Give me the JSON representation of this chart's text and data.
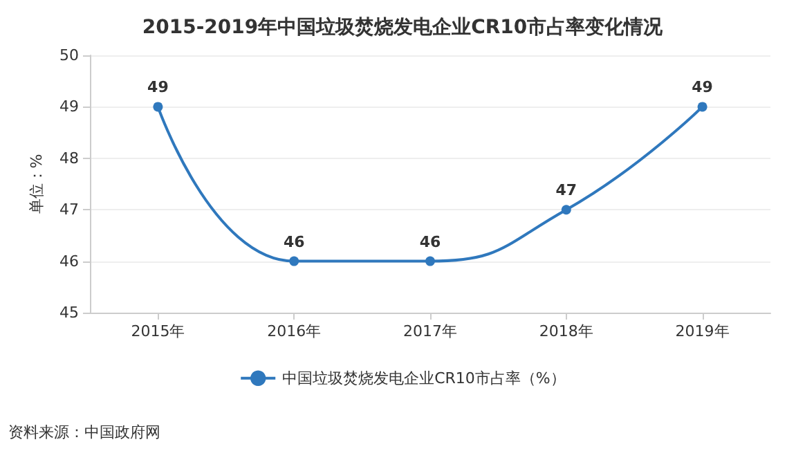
{
  "chart_data": {
    "type": "line",
    "title": "2015-2019年中国垃圾焚烧发电企业CR10市占率变化情况",
    "ylabel": "单位：%",
    "categories": [
      "2015年",
      "2016年",
      "2017年",
      "2018年",
      "2019年"
    ],
    "series": [
      {
        "name": "中国垃圾焚烧发电企业CR10市占率（%）",
        "color": "#2f78bd",
        "values": [
          49,
          46,
          46,
          47,
          49
        ]
      }
    ],
    "ylim": [
      45,
      50
    ],
    "yticks": [
      45,
      46,
      47,
      48,
      49,
      50
    ],
    "grid": "y",
    "legend": "bottom",
    "marker": "circle",
    "line_style": "solid",
    "data_labels": true,
    "annotations": [
      "资料来源：中国政府网"
    ]
  }
}
